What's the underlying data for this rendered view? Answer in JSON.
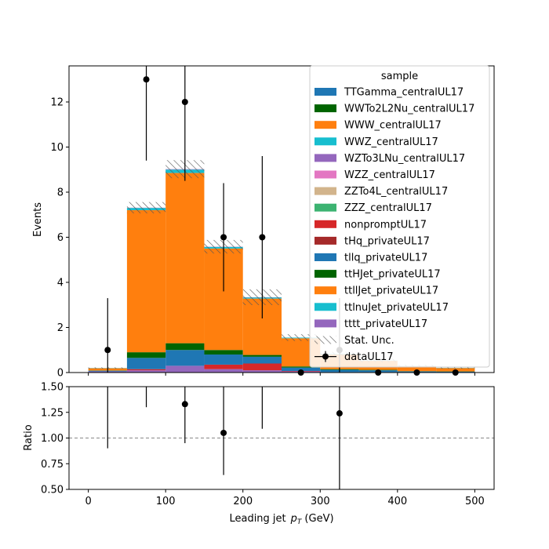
{
  "chart_data": {
    "type": "bar",
    "xlabel": "Leading jet",
    "xlabel_math": "p",
    "xlabel_math_sub": "T",
    "xlabel_unit": "(GeV)",
    "ylabel_main": "Events",
    "ylabel_ratio": "Ratio",
    "xlim": [
      -25,
      525
    ],
    "ylim_main": [
      0,
      13.6
    ],
    "ylim_ratio": [
      0.5,
      1.5
    ],
    "x_ticks": [
      0,
      100,
      200,
      300,
      400,
      500
    ],
    "x_tick_labels": [
      "0",
      "100",
      "200",
      "300",
      "400",
      "500"
    ],
    "y_ticks_main": [
      0,
      2,
      4,
      6,
      8,
      10,
      12
    ],
    "y_tick_labels_main": [
      "0",
      "2",
      "4",
      "6",
      "8",
      "10",
      "12"
    ],
    "y_ticks_ratio": [
      0.5,
      0.75,
      1.0,
      1.25,
      1.5
    ],
    "y_tick_labels_ratio": [
      "0.50",
      "0.75",
      "1.00",
      "1.25",
      "1.50"
    ],
    "ratio_reference_line": 1.0,
    "bin_edges": [
      0,
      50,
      100,
      150,
      200,
      250,
      300,
      350,
      400,
      450,
      500
    ],
    "legend_title": "sample",
    "legend_position": "top-right",
    "series": [
      {
        "name": "TTGamma_centralUL17",
        "color": "#1f77b4",
        "values": [
          0,
          0,
          0,
          0,
          0,
          0,
          0,
          0,
          0,
          0
        ]
      },
      {
        "name": "WWTo2L2Nu_centralUL17",
        "color": "#006400",
        "values": [
          0,
          0,
          0,
          0,
          0,
          0,
          0,
          0,
          0,
          0
        ]
      },
      {
        "name": "WWW_centralUL17",
        "color": "#ff7f0e",
        "values": [
          0,
          0,
          0,
          0,
          0,
          0,
          0,
          0,
          0,
          0
        ]
      },
      {
        "name": "WWZ_centralUL17",
        "color": "#17becf",
        "values": [
          0,
          0,
          0,
          0,
          0,
          0,
          0,
          0,
          0,
          0
        ]
      },
      {
        "name": "WZTo3LNu_centralUL17",
        "color": "#9467bd",
        "values": [
          0.05,
          0.1,
          0.3,
          0.15,
          0.1,
          0.05,
          0.02,
          0.02,
          0.01,
          0.01
        ]
      },
      {
        "name": "WZZ_centralUL17",
        "color": "#e377c2",
        "values": [
          0,
          0,
          0,
          0,
          0,
          0,
          0,
          0,
          0,
          0
        ]
      },
      {
        "name": "ZZTo4L_centralUL17",
        "color": "#d2b48c",
        "values": [
          0,
          0,
          0,
          0,
          0,
          0,
          0,
          0,
          0,
          0
        ]
      },
      {
        "name": "ZZZ_centralUL17",
        "color": "#3cb371",
        "values": [
          0,
          0,
          0,
          0,
          0,
          0,
          0,
          0,
          0,
          0
        ]
      },
      {
        "name": "nonpromptUL17",
        "color": "#d62728",
        "values": [
          0,
          0.05,
          0,
          0.2,
          0.3,
          0.02,
          0,
          0,
          0,
          0
        ]
      },
      {
        "name": "tHq_privateUL17",
        "color": "#a52a2a",
        "values": [
          0,
          0,
          0,
          0,
          0,
          0,
          0,
          0,
          0,
          0
        ]
      },
      {
        "name": "tllq_privateUL17",
        "color": "#1f77b4",
        "values": [
          0.03,
          0.5,
          0.7,
          0.45,
          0.3,
          0.15,
          0.1,
          0.08,
          0.04,
          0.03
        ]
      },
      {
        "name": "ttHJet_privateUL17",
        "color": "#006400",
        "values": [
          0.01,
          0.25,
          0.3,
          0.2,
          0.08,
          0.05,
          0.03,
          0.02,
          0.01,
          0.01
        ]
      },
      {
        "name": "ttllJet_privateUL17",
        "color": "#ff7f0e",
        "values": [
          0.1,
          6.3,
          7.55,
          4.5,
          2.5,
          1.25,
          0.65,
          0.4,
          0.22,
          0.15
        ]
      },
      {
        "name": "ttlnuJet_privateUL17",
        "color": "#17becf",
        "values": [
          0.01,
          0.1,
          0.15,
          0.07,
          0.05,
          0.03,
          0.02,
          0.01,
          0.01,
          0.01
        ]
      },
      {
        "name": "tttt_privateUL17",
        "color": "#9467bd",
        "values": [
          0,
          0.01,
          0.02,
          0.01,
          0.01,
          0,
          0,
          0,
          0,
          0
        ]
      }
    ],
    "stat_unc": {
      "name": "Stat. Unc.",
      "values": [
        0.03,
        0.25,
        0.4,
        0.3,
        0.35,
        0.15,
        0.1,
        0.08,
        0.05,
        0.04
      ]
    },
    "data": {
      "name": "dataUL17",
      "x": [
        25,
        75,
        125,
        175,
        225,
        275,
        325,
        375,
        425,
        475
      ],
      "y": [
        1,
        13,
        12,
        6,
        6,
        0,
        1,
        0,
        0,
        0
      ],
      "err": [
        2.3,
        3.6,
        3.5,
        2.4,
        3.6,
        0,
        2.3,
        0,
        0,
        0
      ]
    },
    "ratio": {
      "x": [
        125,
        175,
        325
      ],
      "y": [
        1.33,
        1.05,
        1.24
      ],
      "err_lo": [
        0.38,
        0.41,
        0.8
      ],
      "err_hi": [
        0.4,
        0.45,
        0.6
      ],
      "bars_only": [
        {
          "x": 25,
          "lo": 0.9,
          "hi": 1.6
        },
        {
          "x": 75,
          "lo": 1.3,
          "hi": 1.6
        },
        {
          "x": 225,
          "lo": 1.09,
          "hi": 1.6
        }
      ]
    }
  }
}
